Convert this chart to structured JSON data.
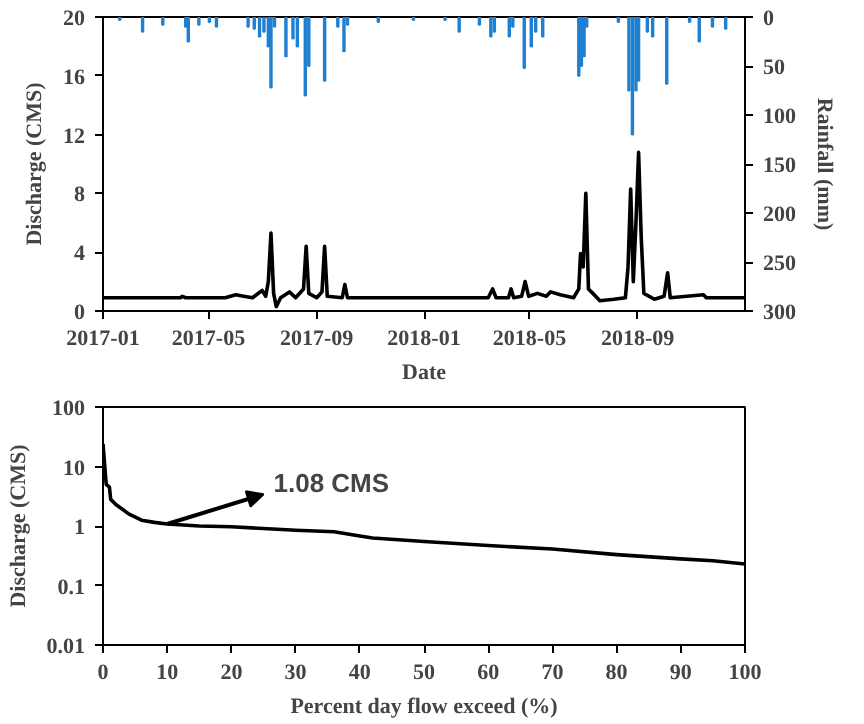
{
  "chart_data": [
    {
      "type": "line",
      "xlabel": "Date",
      "ylabel": "Discharge (CMS)",
      "y2label": "Rainfall (mm)",
      "xlim": [
        "2017-01",
        "2019-01"
      ],
      "xticks": [
        "2017-01",
        "2017-05",
        "2017-09",
        "2018-01",
        "2018-05",
        "2018-09"
      ],
      "ylim": [
        0,
        20
      ],
      "yticks": [
        0,
        4,
        8,
        12,
        16,
        20
      ],
      "y2lim": [
        300,
        0
      ],
      "y2ticks": [
        0,
        50,
        100,
        150,
        200,
        250,
        300
      ],
      "grid": false,
      "series": [
        {
          "color": "#000000",
          "x": [
            "2017-01-01",
            "2017-02-10",
            "2017-03-30",
            "2017-04-01",
            "2017-04-05",
            "2017-05-20",
            "2017-06-01",
            "2017-06-10",
            "2017-06-20",
            "2017-07-01",
            "2017-07-05",
            "2017-07-08",
            "2017-07-11",
            "2017-07-14",
            "2017-07-17",
            "2017-07-22",
            "2017-08-01",
            "2017-08-08",
            "2017-08-17",
            "2017-08-20",
            "2017-08-23",
            "2017-09-01",
            "2017-09-07",
            "2017-09-10",
            "2017-09-13",
            "2017-09-30",
            "2017-10-03",
            "2017-10-06",
            "2017-11-20",
            "2018-01-01",
            "2018-02-20",
            "2018-03-15",
            "2018-03-20",
            "2018-03-24",
            "2018-04-07",
            "2018-04-10",
            "2018-04-13",
            "2018-04-22",
            "2018-04-26",
            "2018-04-30",
            "2018-05-10",
            "2018-05-20",
            "2018-05-25",
            "2018-06-05",
            "2018-06-20",
            "2018-06-26",
            "2018-06-28",
            "2018-07-01",
            "2018-07-04",
            "2018-07-07",
            "2018-07-12",
            "2018-07-20",
            "2018-08-05",
            "2018-08-18",
            "2018-08-21",
            "2018-08-24",
            "2018-08-27",
            "2018-08-30",
            "2018-09-02",
            "2018-09-05",
            "2018-09-08",
            "2018-09-20",
            "2018-10-01",
            "2018-10-05",
            "2018-10-08",
            "2018-11-15",
            "2018-11-18",
            "2018-12-31"
          ],
          "values": [
            0.9,
            0.9,
            0.9,
            1.0,
            0.9,
            0.9,
            1.1,
            1.0,
            0.9,
            1.4,
            1.0,
            2.0,
            5.3,
            1.2,
            0.3,
            0.9,
            1.3,
            0.9,
            1.5,
            4.4,
            1.2,
            0.9,
            1.3,
            4.4,
            1.0,
            0.9,
            1.8,
            0.9,
            0.9,
            0.9,
            0.9,
            0.9,
            1.5,
            0.9,
            0.9,
            1.5,
            0.9,
            1.0,
            2.0,
            1.0,
            1.2,
            1.0,
            1.3,
            1.1,
            0.9,
            1.5,
            3.9,
            3.0,
            8.0,
            1.5,
            1.2,
            0.7,
            0.8,
            0.9,
            3.0,
            8.3,
            2.0,
            6.0,
            10.8,
            5.0,
            1.2,
            0.8,
            1.0,
            2.6,
            0.9,
            1.1,
            0.9,
            0.9
          ]
        },
        {
          "type": "bar",
          "axis": "y2",
          "color": "#1f7fd0",
          "x": [
            "2017-01-20",
            "2017-02-15",
            "2017-03-10",
            "2017-04-05",
            "2017-04-08",
            "2017-04-20",
            "2017-05-02",
            "2017-05-10",
            "2017-06-15",
            "2017-06-22",
            "2017-06-28",
            "2017-07-03",
            "2017-07-08",
            "2017-07-11",
            "2017-07-15",
            "2017-07-28",
            "2017-08-05",
            "2017-08-10",
            "2017-08-19",
            "2017-08-23",
            "2017-09-10",
            "2017-09-25",
            "2017-10-02",
            "2017-10-06",
            "2017-11-10",
            "2017-12-20",
            "2018-01-25",
            "2018-02-10",
            "2018-03-05",
            "2018-03-18",
            "2018-03-22",
            "2018-04-08",
            "2018-04-12",
            "2018-04-25",
            "2018-05-03",
            "2018-05-08",
            "2018-05-16",
            "2018-06-26",
            "2018-06-29",
            "2018-07-02",
            "2018-07-05",
            "2018-08-10",
            "2018-08-22",
            "2018-08-26",
            "2018-08-30",
            "2018-09-02",
            "2018-09-12",
            "2018-09-18",
            "2018-10-04",
            "2018-10-30",
            "2018-11-10",
            "2018-11-25",
            "2018-12-10"
          ],
          "values": [
            3,
            15,
            8,
            10,
            25,
            8,
            5,
            10,
            10,
            12,
            20,
            15,
            30,
            72,
            10,
            40,
            22,
            30,
            80,
            50,
            65,
            10,
            35,
            8,
            5,
            3,
            3,
            15,
            8,
            20,
            15,
            20,
            10,
            52,
            30,
            15,
            20,
            60,
            50,
            40,
            10,
            5,
            75,
            120,
            75,
            65,
            15,
            20,
            68,
            5,
            25,
            10,
            12
          ]
        }
      ]
    },
    {
      "type": "line",
      "xlabel": "Percent day flow exceed (%)",
      "ylabel": "Discharge (CMS)",
      "xlim": [
        0,
        100
      ],
      "xticks": [
        0,
        10,
        20,
        30,
        40,
        50,
        60,
        70,
        80,
        90,
        100
      ],
      "ylim": [
        0.01,
        100
      ],
      "yticks": [
        0.01,
        0.1,
        1,
        10,
        100
      ],
      "log": "y",
      "grid": false,
      "annotations": [
        {
          "text": "1.08 CMS",
          "x": 10,
          "y": 1.08
        }
      ],
      "series": [
        {
          "color": "#000000",
          "x": [
            0,
            0.5,
            1,
            1.2,
            2,
            4,
            6,
            8,
            10,
            15,
            20,
            30,
            36,
            40,
            42,
            50,
            60,
            70,
            80,
            90,
            95,
            100
          ],
          "values": [
            24,
            5,
            4.5,
            2.8,
            2.3,
            1.6,
            1.25,
            1.15,
            1.08,
            1.0,
            0.97,
            0.85,
            0.8,
            0.68,
            0.63,
            0.55,
            0.47,
            0.41,
            0.33,
            0.28,
            0.26,
            0.23
          ]
        }
      ]
    }
  ]
}
